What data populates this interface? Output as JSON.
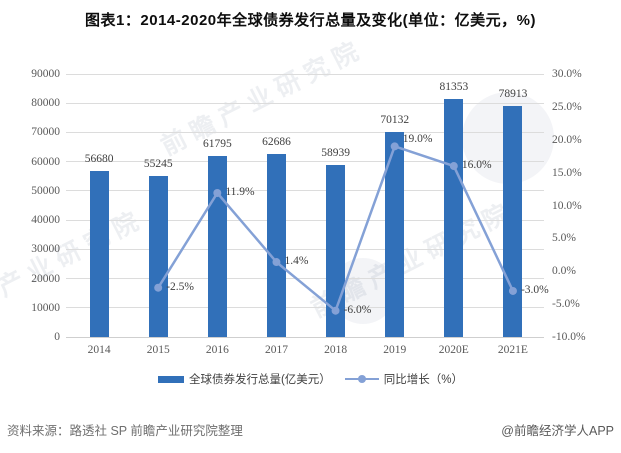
{
  "chart_data": {
    "type": "bar+line",
    "title": "图表1：2014-2020年全球债券发行总量及变化(单位：亿美元，%)",
    "categories": [
      "2014",
      "2015",
      "2016",
      "2017",
      "2018",
      "2019",
      "2020E",
      "2021E"
    ],
    "series": [
      {
        "name": "全球债券发行总量(亿美元）",
        "type": "bar",
        "axis": "left",
        "color": "#3170b9",
        "values": [
          56680,
          55245,
          61795,
          62686,
          58939,
          70132,
          81353,
          78913
        ],
        "value_labels": [
          "56680",
          "55245",
          "61795",
          "62686",
          "58939",
          "70132",
          "81353",
          "78913"
        ]
      },
      {
        "name": "同比增长（%）",
        "type": "line",
        "axis": "right",
        "color": "#84a1d6",
        "values": [
          null,
          -2.5,
          11.9,
          1.4,
          -6.0,
          19.0,
          16.0,
          -3.0
        ],
        "point_labels": [
          "",
          "-2.5%",
          "11.9%",
          "1.4%",
          "-6.0%",
          "19.0%",
          "16.0%",
          "-3.0%"
        ],
        "label_dy": [
          0,
          0,
          0,
          0,
          0,
          -6,
          0,
          0
        ]
      }
    ],
    "left_axis": {
      "min": 0,
      "max": 90000,
      "step": 10000,
      "tick_labels": [
        "0",
        "10000",
        "20000",
        "30000",
        "40000",
        "50000",
        "60000",
        "70000",
        "80000",
        "90000"
      ]
    },
    "right_axis": {
      "min": -10,
      "max": 30,
      "step": 5,
      "tick_labels": [
        "-10.0%",
        "-5.0%",
        "0.0%",
        "5.0%",
        "10.0%",
        "15.0%",
        "20.0%",
        "25.0%",
        "30.0%"
      ]
    },
    "grid": true,
    "legend_position": "bottom"
  },
  "footer": {
    "source_label": "资料来源：路透社 SP 前瞻产业研究院整理",
    "brand_label": "@前瞻经济学人APP"
  },
  "watermark": {
    "text": "前瞻产业研究院"
  }
}
